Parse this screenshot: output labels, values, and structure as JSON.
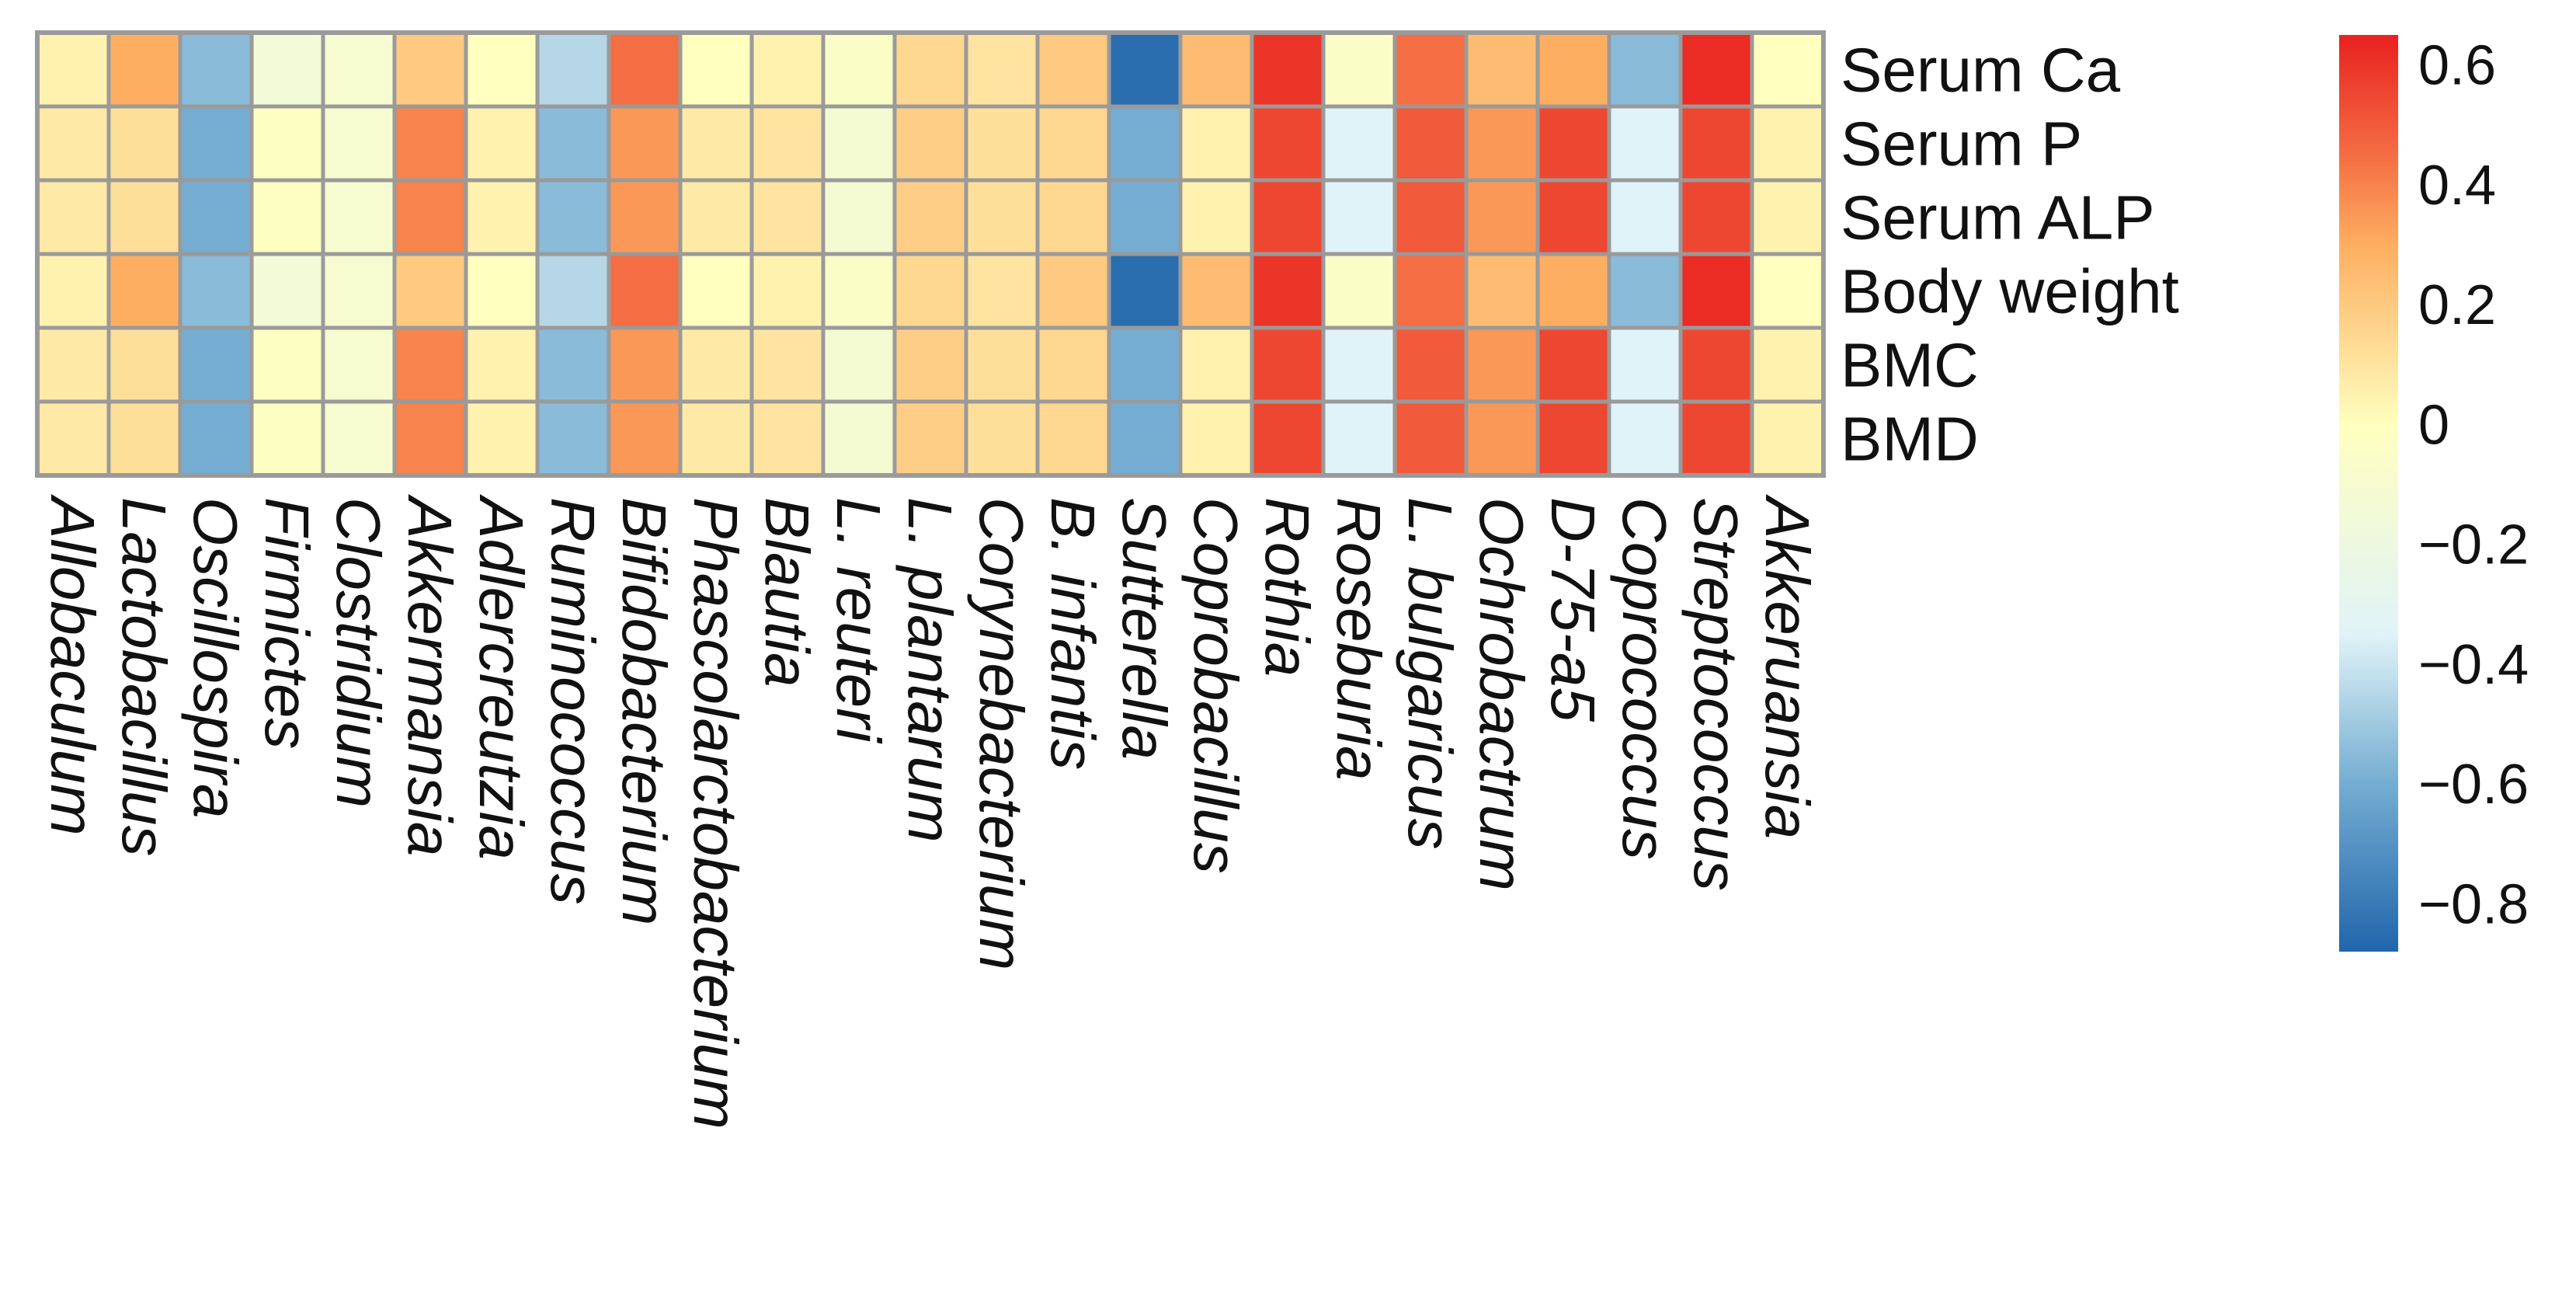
{
  "chart_data": {
    "type": "heatmap",
    "title": "",
    "rows": [
      "Serum Ca",
      "Serum P",
      "Serum ALP",
      "Body weight",
      "BMC",
      "BMD"
    ],
    "columns": [
      "Allobaculum",
      "Lactobacillus",
      "Oscillospira",
      "Firmictes",
      "Clostridium",
      "Akkermansia",
      "Adlercreutzia",
      "Ruminococcus",
      "Bifidobacterium",
      "Phascolarctobacterium",
      "Blautia",
      "L. reuteri",
      "L. plantarum",
      "Corynebacterium",
      "B. infantis",
      "Sutterella",
      "Coprobacillus",
      "Rothia",
      "Roseburia",
      "L. bulgaricus",
      "Ochrobactrum",
      "D-75-a5",
      "Coprococcus",
      "Streptococcus",
      "Akkeruansia"
    ],
    "values": [
      [
        0.05,
        0.3,
        -0.55,
        -0.15,
        -0.1,
        0.2,
        0.0,
        -0.45,
        0.45,
        0.0,
        0.05,
        -0.05,
        0.15,
        0.1,
        0.2,
        -0.85,
        0.25,
        0.6,
        -0.05,
        0.45,
        0.25,
        0.3,
        -0.55,
        0.62,
        0.0
      ],
      [
        0.08,
        0.12,
        -0.6,
        -0.02,
        -0.1,
        0.4,
        0.05,
        -0.55,
        0.35,
        0.08,
        0.1,
        -0.12,
        0.18,
        0.12,
        0.15,
        -0.6,
        0.05,
        0.55,
        -0.35,
        0.5,
        0.35,
        0.55,
        -0.35,
        0.55,
        0.05
      ],
      [
        0.08,
        0.12,
        -0.6,
        -0.02,
        -0.1,
        0.4,
        0.05,
        -0.55,
        0.35,
        0.08,
        0.1,
        -0.12,
        0.18,
        0.12,
        0.15,
        -0.6,
        0.05,
        0.55,
        -0.35,
        0.5,
        0.35,
        0.55,
        -0.35,
        0.55,
        0.05
      ],
      [
        0.05,
        0.3,
        -0.55,
        -0.15,
        -0.1,
        0.2,
        0.0,
        -0.45,
        0.45,
        0.0,
        0.05,
        -0.05,
        0.15,
        0.1,
        0.2,
        -0.85,
        0.25,
        0.6,
        -0.05,
        0.45,
        0.25,
        0.3,
        -0.55,
        0.62,
        0.0
      ],
      [
        0.08,
        0.12,
        -0.6,
        -0.02,
        -0.1,
        0.4,
        0.05,
        -0.55,
        0.35,
        0.08,
        0.1,
        -0.12,
        0.18,
        0.12,
        0.15,
        -0.6,
        0.05,
        0.55,
        -0.35,
        0.5,
        0.35,
        0.55,
        -0.35,
        0.55,
        0.05
      ],
      [
        0.08,
        0.12,
        -0.6,
        -0.02,
        -0.1,
        0.4,
        0.05,
        -0.55,
        0.35,
        0.08,
        0.1,
        -0.12,
        0.18,
        0.12,
        0.15,
        -0.6,
        0.05,
        0.55,
        -0.35,
        0.5,
        0.35,
        0.55,
        -0.35,
        0.55,
        0.05
      ]
    ],
    "colorbar": {
      "range": [
        -0.88,
        0.65
      ],
      "ticks": [
        {
          "value": 0.6,
          "label": "0.6"
        },
        {
          "value": 0.4,
          "label": "0.4"
        },
        {
          "value": 0.2,
          "label": "0.2"
        },
        {
          "value": 0,
          "label": "0"
        },
        {
          "value": -0.2,
          "label": "−0.2"
        },
        {
          "value": -0.4,
          "label": "−0.4"
        },
        {
          "value": -0.6,
          "label": "−0.6"
        },
        {
          "value": -0.8,
          "label": "−0.8"
        }
      ],
      "colors": {
        "low": "#2166ac",
        "mid_low": "#74add1",
        "mid_light": "#e0f3f8",
        "mid": "#ffffbf",
        "mid_warm": "#fdae61",
        "high": "#f46d43",
        "max": "#e8211f"
      }
    },
    "grid": true,
    "legend_position": "right"
  }
}
